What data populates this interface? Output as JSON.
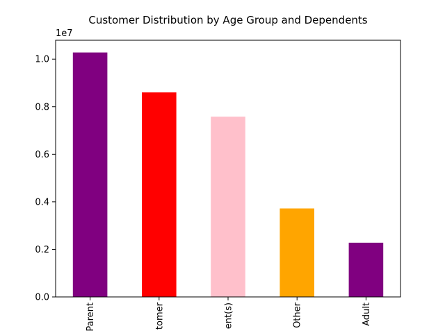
{
  "chart_data": {
    "type": "bar",
    "title": "Customer Distribution by Age Group and Dependents",
    "xlabel": "",
    "ylabel": "",
    "offset_label": "1e7",
    "categories": [
      "Parent",
      "tomer",
      "ent(s)",
      "Other",
      "Adult"
    ],
    "values": [
      10280000,
      8600000,
      7580000,
      3720000,
      2280000
    ],
    "colors": [
      "#800080",
      "#ff0000",
      "#ffc0cb",
      "#ffa500",
      "#800080"
    ],
    "ylim": [
      0,
      10794000
    ],
    "yticks": [
      0,
      2000000,
      4000000,
      6000000,
      8000000,
      10000000
    ],
    "ytick_labels": [
      "0.0",
      "0.2",
      "0.4",
      "0.6",
      "0.8",
      "1.0"
    ],
    "grid": false,
    "legend": "none"
  }
}
